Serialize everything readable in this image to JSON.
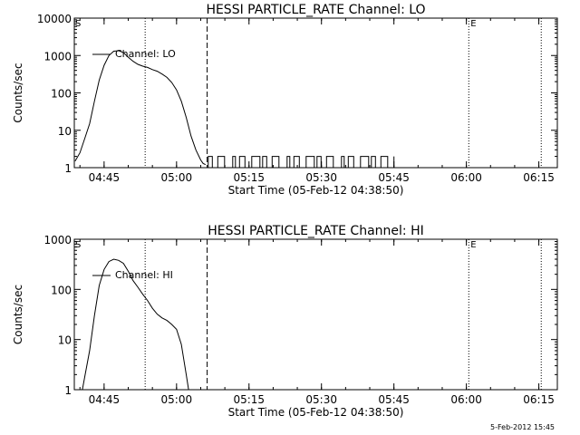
{
  "chart_data": [
    {
      "type": "line",
      "title": "HESSI PARTICLE_RATE Channel: LO",
      "xlabel": "Start Time (05-Feb-12 04:38:50)",
      "ylabel": "Counts/sec",
      "yscale": "log",
      "xlim": [
        "04:38:50",
        "06:18:50"
      ],
      "ylim": [
        1,
        10000
      ],
      "xticks": [
        "04:45",
        "05:00",
        "05:15",
        "05:30",
        "05:45",
        "06:00",
        "06:15"
      ],
      "yticks": [
        "1",
        "10",
        "100",
        "1000",
        "10000"
      ],
      "legend_label": "Channel: LO",
      "legend_position": "top-left",
      "grid": false,
      "flag_labels": [
        "S",
        "E"
      ],
      "series": [
        {
          "name": "Channel: LO",
          "x": [
            "04:39:00",
            "04:40:00",
            "04:41:00",
            "04:42:00",
            "04:43:00",
            "04:44:00",
            "04:45:00",
            "04:46:00",
            "04:47:00",
            "04:48:00",
            "04:49:00",
            "04:50:00",
            "04:51:00",
            "04:52:00",
            "04:53:00",
            "04:54:00",
            "04:55:00",
            "04:56:00",
            "04:57:00",
            "04:58:00",
            "04:59:00",
            "05:00:00",
            "05:01:00",
            "05:02:00",
            "05:03:00",
            "05:04:00",
            "05:05:00",
            "05:05:30",
            "05:06:00"
          ],
          "values": [
            1.5,
            2.5,
            6,
            15,
            60,
            220,
            550,
            1000,
            1300,
            1350,
            1200,
            900,
            700,
            580,
            520,
            480,
            420,
            380,
            320,
            260,
            190,
            120,
            60,
            22,
            7,
            3,
            1.6,
            1.3,
            1.2
          ]
        }
      ],
      "noise_baseline": {
        "x_start": "05:06:00",
        "x_end": "05:45:00",
        "levels": [
          1,
          2
        ]
      },
      "vlines": [
        {
          "x": "04:53:30",
          "style": "dotted"
        },
        {
          "x": "05:06:20",
          "style": "dashed"
        },
        {
          "x": "06:00:30",
          "style": "dotted"
        },
        {
          "x": "06:15:30",
          "style": "dotted"
        }
      ]
    },
    {
      "type": "line",
      "title": "HESSI PARTICLE_RATE Channel: HI",
      "xlabel": "Start Time (05-Feb-12 04:38:50)",
      "ylabel": "Counts/sec",
      "yscale": "log",
      "xlim": [
        "04:38:50",
        "06:18:50"
      ],
      "ylim": [
        1,
        1000
      ],
      "xticks": [
        "04:45",
        "05:00",
        "05:15",
        "05:30",
        "05:45",
        "06:00",
        "06:15"
      ],
      "yticks": [
        "1",
        "10",
        "100",
        "1000"
      ],
      "legend_label": "Channel: HI",
      "legend_position": "top-left",
      "grid": false,
      "flag_labels": [
        "S",
        "E"
      ],
      "series": [
        {
          "name": "Channel: HI",
          "x": [
            "04:40:30",
            "04:41:00",
            "04:42:00",
            "04:43:00",
            "04:44:00",
            "04:45:00",
            "04:46:00",
            "04:47:00",
            "04:48:00",
            "04:49:00",
            "04:50:00",
            "04:51:00",
            "04:52:00",
            "04:53:00",
            "04:54:00",
            "04:55:00",
            "04:56:00",
            "04:57:00",
            "04:58:00",
            "04:59:00",
            "05:00:00",
            "05:01:00",
            "05:01:30",
            "05:02:00",
            "05:02:30"
          ],
          "values": [
            1,
            1.8,
            6,
            30,
            120,
            250,
            360,
            400,
            380,
            330,
            230,
            150,
            110,
            80,
            60,
            42,
            32,
            27,
            24,
            20,
            16,
            8,
            4,
            2,
            1
          ]
        }
      ],
      "vlines": [
        {
          "x": "04:53:30",
          "style": "dotted"
        },
        {
          "x": "05:06:20",
          "style": "dashed"
        },
        {
          "x": "06:00:30",
          "style": "dotted"
        },
        {
          "x": "06:15:30",
          "style": "dotted"
        }
      ]
    }
  ],
  "footer": {
    "timestamp": "5-Feb-2012 15:45"
  }
}
